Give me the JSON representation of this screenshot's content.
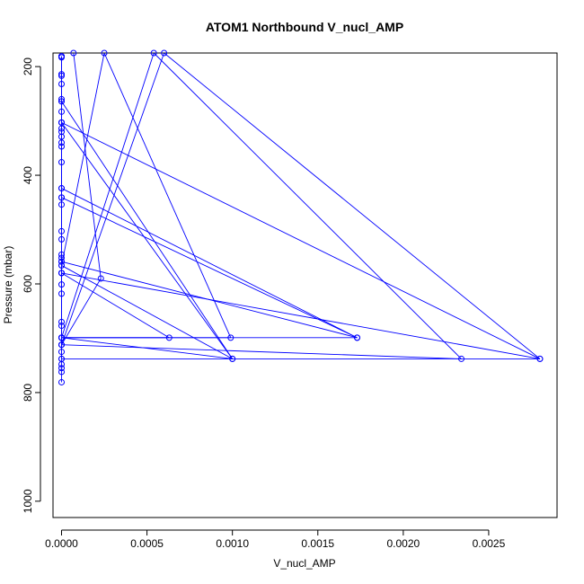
{
  "chart_data": {
    "type": "line",
    "title": "ATOM1 Northbound V_nucl_AMP",
    "xlabel": "V_nucl_AMP",
    "ylabel": "Pressure (mbar)",
    "xlim": [
      -5e-05,
      0.0029
    ],
    "ylim": [
      1030,
      175
    ],
    "y_reversed": true,
    "grid": false,
    "x_ticks": [
      0,
      0.0005,
      0.001,
      0.0015,
      0.002,
      0.0025
    ],
    "x_tick_labels": [
      "0.0000",
      "0.0005",
      "0.0010",
      "0.0015",
      "0.0020",
      "0.0025"
    ],
    "y_ticks": [
      200,
      400,
      600,
      800,
      1000
    ],
    "y_tick_labels": [
      "200",
      "400",
      "600",
      "800",
      "1000"
    ],
    "series": [
      {
        "color": "#0000ff",
        "marker": "open-circle",
        "points": [
          [
            0.0,
            781
          ],
          [
            0.0,
            762
          ],
          [
            0.0,
            755
          ],
          [
            0.0,
            748
          ],
          [
            0.0,
            738
          ],
          [
            0.0,
            725
          ],
          [
            0.0,
            712
          ],
          [
            0.0,
            699
          ],
          [
            0.0,
            677
          ],
          [
            0.0,
            670
          ],
          [
            0.0,
            618
          ],
          [
            0.0,
            601
          ],
          [
            0.0,
            580
          ],
          [
            0.0,
            566
          ],
          [
            0.0,
            559
          ],
          [
            0.0,
            552
          ],
          [
            0.0,
            546
          ],
          [
            0.0,
            518
          ],
          [
            0.0,
            503
          ],
          [
            0.0,
            454
          ],
          [
            0.0,
            441
          ],
          [
            0.0,
            424
          ],
          [
            0.0,
            376
          ],
          [
            0.0,
            347
          ],
          [
            0.0,
            340
          ],
          [
            0.0,
            329
          ],
          [
            0.0,
            320
          ],
          [
            0.0,
            314
          ],
          [
            0.0,
            303
          ],
          [
            0.0,
            283
          ],
          [
            0.0,
            264
          ],
          [
            0.0,
            260
          ],
          [
            0.0,
            232
          ],
          [
            0.0,
            217
          ],
          [
            0.0,
            214
          ],
          [
            0.0,
            183
          ],
          [
            0.0,
            181
          ],
          [
            0.0,
            181
          ],
          [
            0.0,
            738
          ],
          [
            0.0028,
            738
          ],
          [
            0.0006,
            175
          ],
          [
            0.0,
            712
          ],
          [
            0.00234,
            738
          ],
          [
            0.00054,
            175
          ],
          [
            0.0,
            699
          ],
          [
            0.00173,
            699
          ],
          [
            0.0,
            424
          ],
          [
            0.0,
            699
          ],
          [
            0.001,
            738
          ],
          [
            0.0,
            264
          ],
          [
            0.0,
            699
          ],
          [
            0.00099,
            699
          ],
          [
            0.00025,
            175
          ],
          [
            0.0,
            566
          ],
          [
            0.001,
            738
          ],
          [
            0.0,
            303
          ],
          [
            0.0,
            580
          ],
          [
            0.0028,
            738
          ],
          [
            0.0,
            303
          ],
          [
            0.0,
            559
          ],
          [
            0.00173,
            699
          ],
          [
            0.0,
            441
          ],
          [
            0.0,
            699
          ],
          [
            0.00063,
            699
          ],
          [
            0.0,
            580
          ],
          [
            0.0,
            712
          ],
          [
            0.00023,
            590
          ],
          [
            7e-05,
            175
          ]
        ]
      }
    ]
  }
}
